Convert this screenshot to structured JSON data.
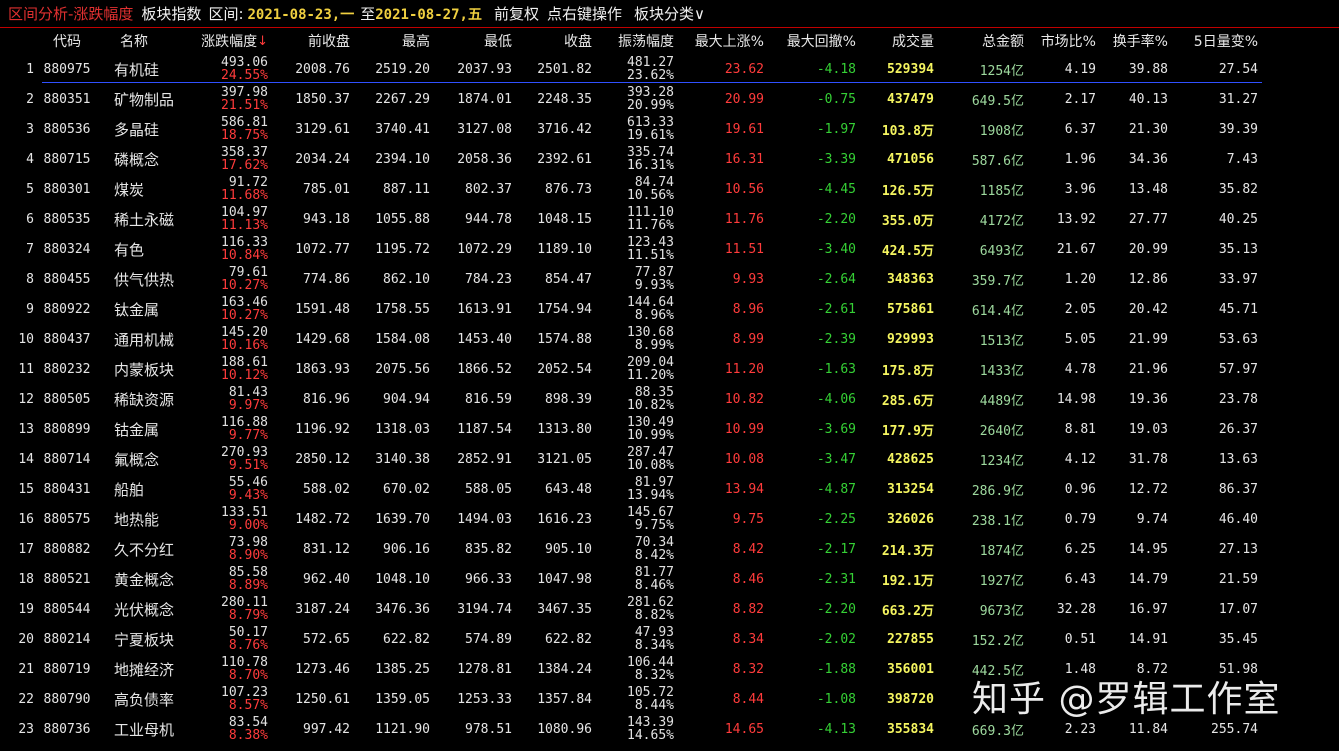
{
  "title_bar": {
    "app_title": "区间分析-涨跌幅度",
    "subtitle": "板块指数",
    "range_label": "区间:",
    "start_date": "2021-08-23,一",
    "to_label": "至",
    "end_date": "2021-08-27,五",
    "menu_adjust": "前复权",
    "menu_right_click": "点右键操作",
    "menu_category": "板块分类∨"
  },
  "columns": [
    "代码",
    "名称",
    "涨跌幅度",
    "前收盘",
    "最高",
    "最低",
    "收盘",
    "振荡幅度",
    "最大上涨%",
    "最大回撤%",
    "成交量",
    "总金额",
    "市场比%",
    "换手率%",
    "5日量变%"
  ],
  "sort_indicator": "↓",
  "rows": [
    {
      "idx": "1",
      "code": "880975",
      "name": "有机硅",
      "chg": "493.06",
      "chg_pct": "24.55%",
      "prev": "2008.76",
      "high": "2519.20",
      "low": "2037.93",
      "close": "2501.82",
      "amp": "481.27",
      "amp_pct": "23.62%",
      "max_up": "23.62",
      "max_dn": "-4.18",
      "vol": "529394",
      "amt": "1254亿",
      "mkt": "4.19",
      "turn": "39.88",
      "vr": "27.54"
    },
    {
      "idx": "2",
      "code": "880351",
      "name": "矿物制品",
      "chg": "397.98",
      "chg_pct": "21.51%",
      "prev": "1850.37",
      "high": "2267.29",
      "low": "1874.01",
      "close": "2248.35",
      "amp": "393.28",
      "amp_pct": "20.99%",
      "max_up": "20.99",
      "max_dn": "-0.75",
      "vol": "437479",
      "amt": "649.5亿",
      "mkt": "2.17",
      "turn": "40.13",
      "vr": "31.27"
    },
    {
      "idx": "3",
      "code": "880536",
      "name": "多晶硅",
      "chg": "586.81",
      "chg_pct": "18.75%",
      "prev": "3129.61",
      "high": "3740.41",
      "low": "3127.08",
      "close": "3716.42",
      "amp": "613.33",
      "amp_pct": "19.61%",
      "max_up": "19.61",
      "max_dn": "-1.97",
      "vol": "103.8万",
      "amt": "1908亿",
      "mkt": "6.37",
      "turn": "21.30",
      "vr": "39.39"
    },
    {
      "idx": "4",
      "code": "880715",
      "name": "磷概念",
      "chg": "358.37",
      "chg_pct": "17.62%",
      "prev": "2034.24",
      "high": "2394.10",
      "low": "2058.36",
      "close": "2392.61",
      "amp": "335.74",
      "amp_pct": "16.31%",
      "max_up": "16.31",
      "max_dn": "-3.39",
      "vol": "471056",
      "amt": "587.6亿",
      "mkt": "1.96",
      "turn": "34.36",
      "vr": "7.43"
    },
    {
      "idx": "5",
      "code": "880301",
      "name": "煤炭",
      "chg": "91.72",
      "chg_pct": "11.68%",
      "prev": "785.01",
      "high": "887.11",
      "low": "802.37",
      "close": "876.73",
      "amp": "84.74",
      "amp_pct": "10.56%",
      "max_up": "10.56",
      "max_dn": "-4.45",
      "vol": "126.5万",
      "amt": "1185亿",
      "mkt": "3.96",
      "turn": "13.48",
      "vr": "35.82"
    },
    {
      "idx": "6",
      "code": "880535",
      "name": "稀土永磁",
      "chg": "104.97",
      "chg_pct": "11.13%",
      "prev": "943.18",
      "high": "1055.88",
      "low": "944.78",
      "close": "1048.15",
      "amp": "111.10",
      "amp_pct": "11.76%",
      "max_up": "11.76",
      "max_dn": "-2.20",
      "vol": "355.0万",
      "amt": "4172亿",
      "mkt": "13.92",
      "turn": "27.77",
      "vr": "40.25"
    },
    {
      "idx": "7",
      "code": "880324",
      "name": "有色",
      "chg": "116.33",
      "chg_pct": "10.84%",
      "prev": "1072.77",
      "high": "1195.72",
      "low": "1072.29",
      "close": "1189.10",
      "amp": "123.43",
      "amp_pct": "11.51%",
      "max_up": "11.51",
      "max_dn": "-3.40",
      "vol": "424.5万",
      "amt": "6493亿",
      "mkt": "21.67",
      "turn": "20.99",
      "vr": "35.13"
    },
    {
      "idx": "8",
      "code": "880455",
      "name": "供气供热",
      "chg": "79.61",
      "chg_pct": "10.27%",
      "prev": "774.86",
      "high": "862.10",
      "low": "784.23",
      "close": "854.47",
      "amp": "77.87",
      "amp_pct": "9.93%",
      "max_up": "9.93",
      "max_dn": "-2.64",
      "vol": "348363",
      "amt": "359.7亿",
      "mkt": "1.20",
      "turn": "12.86",
      "vr": "33.97"
    },
    {
      "idx": "9",
      "code": "880922",
      "name": "钛金属",
      "chg": "163.46",
      "chg_pct": "10.27%",
      "prev": "1591.48",
      "high": "1758.55",
      "low": "1613.91",
      "close": "1754.94",
      "amp": "144.64",
      "amp_pct": "8.96%",
      "max_up": "8.96",
      "max_dn": "-2.61",
      "vol": "575861",
      "amt": "614.4亿",
      "mkt": "2.05",
      "turn": "20.42",
      "vr": "45.71"
    },
    {
      "idx": "10",
      "code": "880437",
      "name": "通用机械",
      "chg": "145.20",
      "chg_pct": "10.16%",
      "prev": "1429.68",
      "high": "1584.08",
      "low": "1453.40",
      "close": "1574.88",
      "amp": "130.68",
      "amp_pct": "8.99%",
      "max_up": "8.99",
      "max_dn": "-2.39",
      "vol": "929993",
      "amt": "1513亿",
      "mkt": "5.05",
      "turn": "21.99",
      "vr": "53.63"
    },
    {
      "idx": "11",
      "code": "880232",
      "name": "内蒙板块",
      "chg": "188.61",
      "chg_pct": "10.12%",
      "prev": "1863.93",
      "high": "2075.56",
      "low": "1866.52",
      "close": "2052.54",
      "amp": "209.04",
      "amp_pct": "11.20%",
      "max_up": "11.20",
      "max_dn": "-1.63",
      "vol": "175.8万",
      "amt": "1433亿",
      "mkt": "4.78",
      "turn": "21.96",
      "vr": "57.97"
    },
    {
      "idx": "12",
      "code": "880505",
      "name": "稀缺资源",
      "chg": "81.43",
      "chg_pct": "9.97%",
      "prev": "816.96",
      "high": "904.94",
      "low": "816.59",
      "close": "898.39",
      "amp": "88.35",
      "amp_pct": "10.82%",
      "max_up": "10.82",
      "max_dn": "-4.06",
      "vol": "285.6万",
      "amt": "4489亿",
      "mkt": "14.98",
      "turn": "19.36",
      "vr": "23.78"
    },
    {
      "idx": "13",
      "code": "880899",
      "name": "钴金属",
      "chg": "116.88",
      "chg_pct": "9.77%",
      "prev": "1196.92",
      "high": "1318.03",
      "low": "1187.54",
      "close": "1313.80",
      "amp": "130.49",
      "amp_pct": "10.99%",
      "max_up": "10.99",
      "max_dn": "-3.69",
      "vol": "177.9万",
      "amt": "2640亿",
      "mkt": "8.81",
      "turn": "19.03",
      "vr": "26.37"
    },
    {
      "idx": "14",
      "code": "880714",
      "name": "氟概念",
      "chg": "270.93",
      "chg_pct": "9.51%",
      "prev": "2850.12",
      "high": "3140.38",
      "low": "2852.91",
      "close": "3121.05",
      "amp": "287.47",
      "amp_pct": "10.08%",
      "max_up": "10.08",
      "max_dn": "-3.47",
      "vol": "428625",
      "amt": "1234亿",
      "mkt": "4.12",
      "turn": "31.78",
      "vr": "13.63"
    },
    {
      "idx": "15",
      "code": "880431",
      "name": "船舶",
      "chg": "55.46",
      "chg_pct": "9.43%",
      "prev": "588.02",
      "high": "670.02",
      "low": "588.05",
      "close": "643.48",
      "amp": "81.97",
      "amp_pct": "13.94%",
      "max_up": "13.94",
      "max_dn": "-4.87",
      "vol": "313254",
      "amt": "286.9亿",
      "mkt": "0.96",
      "turn": "12.72",
      "vr": "86.37"
    },
    {
      "idx": "16",
      "code": "880575",
      "name": "地热能",
      "chg": "133.51",
      "chg_pct": "9.00%",
      "prev": "1482.72",
      "high": "1639.70",
      "low": "1494.03",
      "close": "1616.23",
      "amp": "145.67",
      "amp_pct": "9.75%",
      "max_up": "9.75",
      "max_dn": "-2.25",
      "vol": "326026",
      "amt": "238.1亿",
      "mkt": "0.79",
      "turn": "9.74",
      "vr": "46.40"
    },
    {
      "idx": "17",
      "code": "880882",
      "name": "久不分红",
      "chg": "73.98",
      "chg_pct": "8.90%",
      "prev": "831.12",
      "high": "906.16",
      "low": "835.82",
      "close": "905.10",
      "amp": "70.34",
      "amp_pct": "8.42%",
      "max_up": "8.42",
      "max_dn": "-2.17",
      "vol": "214.3万",
      "amt": "1874亿",
      "mkt": "6.25",
      "turn": "14.95",
      "vr": "27.13"
    },
    {
      "idx": "18",
      "code": "880521",
      "name": "黄金概念",
      "chg": "85.58",
      "chg_pct": "8.89%",
      "prev": "962.40",
      "high": "1048.10",
      "low": "966.33",
      "close": "1047.98",
      "amp": "81.77",
      "amp_pct": "8.46%",
      "max_up": "8.46",
      "max_dn": "-2.31",
      "vol": "192.1万",
      "amt": "1927亿",
      "mkt": "6.43",
      "turn": "14.79",
      "vr": "21.59"
    },
    {
      "idx": "19",
      "code": "880544",
      "name": "光伏概念",
      "chg": "280.11",
      "chg_pct": "8.79%",
      "prev": "3187.24",
      "high": "3476.36",
      "low": "3194.74",
      "close": "3467.35",
      "amp": "281.62",
      "amp_pct": "8.82%",
      "max_up": "8.82",
      "max_dn": "-2.20",
      "vol": "663.2万",
      "amt": "9673亿",
      "mkt": "32.28",
      "turn": "16.97",
      "vr": "17.07"
    },
    {
      "idx": "20",
      "code": "880214",
      "name": "宁夏板块",
      "chg": "50.17",
      "chg_pct": "8.76%",
      "prev": "572.65",
      "high": "622.82",
      "low": "574.89",
      "close": "622.82",
      "amp": "47.93",
      "amp_pct": "8.34%",
      "max_up": "8.34",
      "max_dn": "-2.02",
      "vol": "227855",
      "amt": "152.2亿",
      "mkt": "0.51",
      "turn": "14.91",
      "vr": "35.45"
    },
    {
      "idx": "21",
      "code": "880719",
      "name": "地摊经济",
      "chg": "110.78",
      "chg_pct": "8.70%",
      "prev": "1273.46",
      "high": "1385.25",
      "low": "1278.81",
      "close": "1384.24",
      "amp": "106.44",
      "amp_pct": "8.32%",
      "max_up": "8.32",
      "max_dn": "-1.88",
      "vol": "356001",
      "amt": "442.5亿",
      "mkt": "1.48",
      "turn": "8.72",
      "vr": "51.98"
    },
    {
      "idx": "22",
      "code": "880790",
      "name": "高负债率",
      "chg": "107.23",
      "chg_pct": "8.57%",
      "prev": "1250.61",
      "high": "1359.05",
      "low": "1253.33",
      "close": "1357.84",
      "amp": "105.72",
      "amp_pct": "8.44%",
      "max_up": "8.44",
      "max_dn": "-1.08",
      "vol": "398720",
      "amt": "",
      "mkt": "",
      "turn": "",
      "vr": ""
    },
    {
      "idx": "23",
      "code": "880736",
      "name": "工业母机",
      "chg": "83.54",
      "chg_pct": "8.38%",
      "prev": "997.42",
      "high": "1121.90",
      "low": "978.51",
      "close": "1080.96",
      "amp": "143.39",
      "amp_pct": "14.65%",
      "max_up": "14.65",
      "max_dn": "-4.13",
      "vol": "355834",
      "amt": "669.3亿",
      "mkt": "2.23",
      "turn": "11.84",
      "vr": "255.74"
    }
  ],
  "watermark": "知乎 @罗辑工作室",
  "colors": {
    "up": "#ff3b3b",
    "down": "#35d035",
    "volume": "#f5f560",
    "amount": "#9ed99e",
    "selection": "#3050ff",
    "border": "#c00000"
  }
}
